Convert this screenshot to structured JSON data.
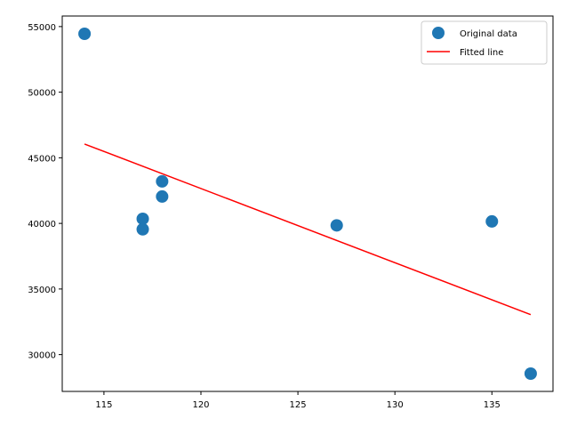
{
  "chart_data": {
    "type": "scatter",
    "title": "",
    "xlabel": "",
    "ylabel": "",
    "xlim": [
      112.85,
      138.15
    ],
    "ylim": [
      27195,
      55805
    ],
    "xticks": [
      115,
      120,
      125,
      130,
      135
    ],
    "yticks": [
      30000,
      35000,
      40000,
      45000,
      50000,
      55000
    ],
    "grid": false,
    "legend_position": "top-right",
    "series": [
      {
        "name": "Original data",
        "kind": "points",
        "color": "#1f77b4",
        "points": [
          {
            "x": 114,
            "y": 54450
          },
          {
            "x": 117,
            "y": 40350
          },
          {
            "x": 117,
            "y": 39550
          },
          {
            "x": 118,
            "y": 43200
          },
          {
            "x": 118,
            "y": 42050
          },
          {
            "x": 127,
            "y": 39850
          },
          {
            "x": 135,
            "y": 40150
          },
          {
            "x": 137,
            "y": 28550
          }
        ]
      },
      {
        "name": "Fitted line",
        "kind": "line",
        "color": "#ff0000",
        "points": [
          {
            "x": 114,
            "y": 46050
          },
          {
            "x": 137,
            "y": 33050
          }
        ]
      }
    ]
  }
}
